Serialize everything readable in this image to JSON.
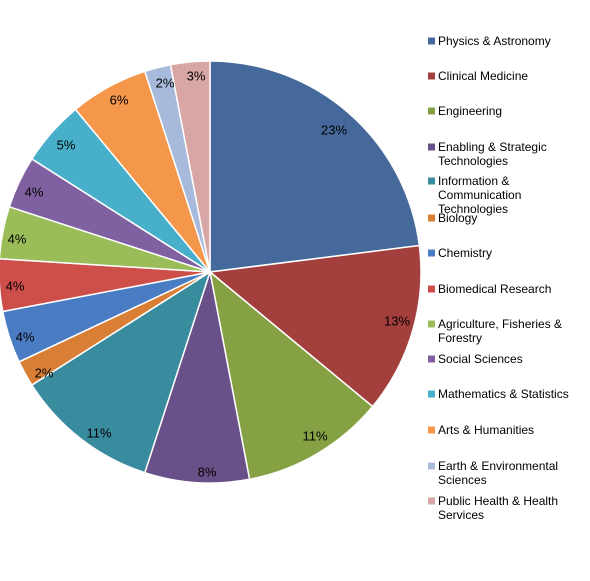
{
  "chart_data": {
    "type": "pie",
    "title": "",
    "legend_position": "right",
    "start_angle_deg": 0,
    "direction": "clockwise",
    "slices": [
      {
        "label": "Physics & Astronomy",
        "value": 23,
        "display": "23%",
        "color": "#44699A"
      },
      {
        "label": "Clinical Medicine",
        "value": 13,
        "display": "13%",
        "color": "#A33F3C"
      },
      {
        "label": "Engineering",
        "value": 11,
        "display": "11%",
        "color": "#85A144"
      },
      {
        "label": "Enabling & Strategic Technologies",
        "value": 8,
        "display": "8%",
        "color": "#6A5088"
      },
      {
        "label": "Information & Communication Technologies",
        "value": 11,
        "display": "11%",
        "color": "#398B9E"
      },
      {
        "label": "Biology",
        "value": 2,
        "display": "2%",
        "color": "#D97F35"
      },
      {
        "label": "Chemistry",
        "value": 4,
        "display": "4%",
        "color": "#4A7CC3"
      },
      {
        "label": "Biomedical Research",
        "value": 4,
        "display": "4%",
        "color": "#CE4E4A"
      },
      {
        "label": "Agriculture, Fisheries & Forestry",
        "value": 4,
        "display": "4%",
        "color": "#9ABC59"
      },
      {
        "label": "Social Sciences",
        "value": 4,
        "display": "4%",
        "color": "#7F60A0"
      },
      {
        "label": "Mathematics & Statistics",
        "value": 5,
        "display": "5%",
        "color": "#48AFCA"
      },
      {
        "label": "Arts & Humanities",
        "value": 6,
        "display": "6%",
        "color": "#F4974A"
      },
      {
        "label": "Earth & Environmental Sciences",
        "value": 2,
        "display": "2%",
        "color": "#A8BADB"
      },
      {
        "label": "Public Health & Health Services",
        "value": 3,
        "display": "3%",
        "color": "#D8A6A4"
      }
    ],
    "legend_lines": [
      [
        "Physics & Astronomy"
      ],
      [
        "Clinical Medicine"
      ],
      [
        "Engineering"
      ],
      [
        "Enabling & Strategic",
        "Technologies"
      ],
      [
        "Information &",
        "Communication",
        "Technologies"
      ],
      [
        "Biology"
      ],
      [
        "Chemistry"
      ],
      [
        "Biomedical Research"
      ],
      [
        "Agriculture, Fisheries &",
        "Forestry"
      ],
      [
        "Social Sciences"
      ],
      [
        "Mathematics & Statistics"
      ],
      [
        "Arts & Humanities"
      ],
      [
        "Earth & Environmental",
        "Sciences"
      ],
      [
        "Public Health & Health",
        "Services"
      ]
    ]
  }
}
